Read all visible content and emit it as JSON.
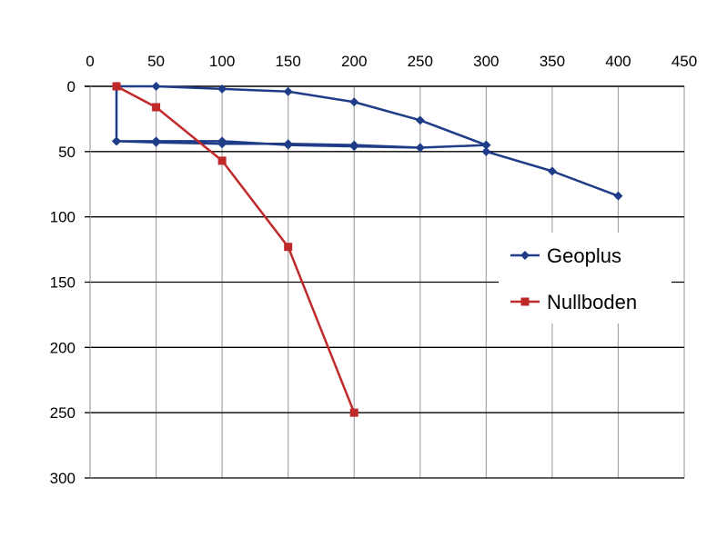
{
  "chart_data": {
    "type": "line",
    "title": "",
    "xlabel": "",
    "ylabel": "",
    "xlim": [
      0,
      450
    ],
    "ylim": [
      0,
      300
    ],
    "y_inverted": true,
    "x_axis_position": "top",
    "x_ticks": [
      0,
      50,
      100,
      150,
      200,
      250,
      300,
      350,
      400,
      450
    ],
    "y_ticks": [
      0,
      50,
      100,
      150,
      200,
      250,
      300
    ],
    "grid": {
      "vertical": true,
      "horizontal": true
    },
    "legend": {
      "position": "right",
      "entries": [
        "Geoplus",
        "Nullboden"
      ]
    },
    "series": [
      {
        "name": "Geoplus",
        "color": "#1f3c88",
        "marker": "diamond",
        "points": [
          [
            20,
            42
          ],
          [
            50,
            42
          ],
          [
            100,
            42
          ],
          [
            150,
            45
          ],
          [
            200,
            46
          ],
          [
            250,
            47
          ],
          [
            300,
            45
          ],
          [
            250,
            47
          ],
          [
            200,
            45
          ],
          [
            150,
            44
          ],
          [
            100,
            44
          ],
          [
            50,
            43
          ],
          [
            20,
            42
          ],
          [
            20,
            0
          ],
          [
            50,
            0
          ],
          [
            100,
            2
          ],
          [
            150,
            4
          ],
          [
            200,
            12
          ],
          [
            250,
            26
          ],
          [
            300,
            45
          ],
          [
            300,
            50
          ],
          [
            350,
            65
          ],
          [
            400,
            84
          ]
        ]
      },
      {
        "name": "Nullboden",
        "color": "#c0292a",
        "marker": "square",
        "points": [
          [
            20,
            0
          ],
          [
            50,
            16
          ],
          [
            100,
            57
          ],
          [
            150,
            123
          ],
          [
            200,
            250
          ]
        ]
      }
    ]
  }
}
